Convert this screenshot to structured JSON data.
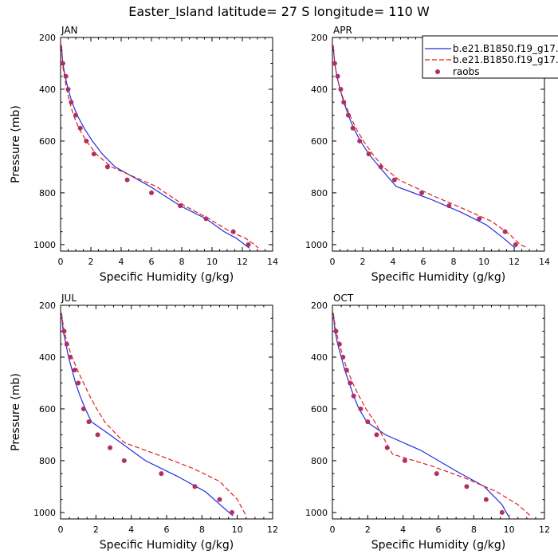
{
  "figure": {
    "title": "Easter_Island  latitude= 27 S longitude= 110 W"
  },
  "legend": {
    "placement": "top-right",
    "entries": [
      {
        "label": "b.e21.B1850.f19_g17.",
        "color": "#1f2fe0",
        "style": "solid"
      },
      {
        "label": "b.e21.B1850.f19_g17.",
        "color": "#e01f1f",
        "style": "dashed"
      },
      {
        "label": "raobs",
        "color": "#b03060",
        "style": "dots"
      }
    ]
  },
  "chart_data": [
    {
      "type": "line",
      "panel_label": "JAN",
      "xlabel": "Specific Humidity (g/kg)",
      "ylabel": "Pressure (mb)",
      "xlim": [
        0,
        14
      ],
      "ylim": [
        1025,
        200
      ],
      "xticks": [
        0,
        2,
        4,
        6,
        8,
        10,
        12,
        14
      ],
      "yticks": [
        200,
        400,
        600,
        800,
        1000
      ],
      "series": [
        {
          "color": "#1f2fe0",
          "dash": "solid",
          "x": [
            0.05,
            0.15,
            0.3,
            0.5,
            0.75,
            1.1,
            1.55,
            2.1,
            2.75,
            3.6,
            5.9,
            7.9,
            9.6,
            10.8,
            11.6,
            12.15,
            12.45
          ],
          "y": [
            230,
            300,
            350,
            400,
            450,
            500,
            550,
            600,
            650,
            700,
            775,
            850,
            900,
            950,
            975,
            1000,
            1013
          ]
        },
        {
          "color": "#e01f1f",
          "dash": "dashed",
          "x": [
            0.05,
            0.12,
            0.25,
            0.4,
            0.6,
            0.85,
            1.2,
            1.7,
            2.35,
            3.35,
            6.3,
            8.2,
            9.8,
            11.2,
            12.2,
            12.8,
            13.05
          ],
          "y": [
            230,
            300,
            350,
            400,
            450,
            500,
            550,
            600,
            650,
            700,
            775,
            850,
            900,
            950,
            975,
            1000,
            1013
          ]
        },
        {
          "color": "#b03060",
          "dash": "dots",
          "x": [
            0.15,
            0.35,
            0.5,
            0.7,
            1.0,
            1.3,
            1.7,
            2.2,
            3.1,
            4.4,
            6.0,
            7.9,
            9.6,
            11.4,
            12.4
          ],
          "y": [
            300,
            350,
            400,
            450,
            500,
            550,
            600,
            650,
            700,
            750,
            800,
            850,
            900,
            950,
            1000
          ]
        }
      ]
    },
    {
      "type": "line",
      "panel_label": "APR",
      "xlabel": "Specific Humidity (g/kg)",
      "ylabel": "",
      "xlim": [
        0,
        14
      ],
      "ylim": [
        1025,
        200
      ],
      "xticks": [
        0,
        2,
        4,
        6,
        8,
        10,
        12,
        14
      ],
      "yticks": [
        200,
        400,
        600,
        800,
        1000
      ],
      "series": [
        {
          "color": "#1f2fe0",
          "dash": "solid",
          "x": [
            0.05,
            0.15,
            0.3,
            0.5,
            0.75,
            1.05,
            1.4,
            1.85,
            2.4,
            3.1,
            4.2,
            6.5,
            8.5,
            10.2,
            11.3,
            11.8,
            12.05
          ],
          "y": [
            230,
            300,
            350,
            400,
            450,
            500,
            550,
            600,
            650,
            700,
            775,
            825,
            875,
            925,
            975,
            1000,
            1013
          ]
        },
        {
          "color": "#e01f1f",
          "dash": "dashed",
          "x": [
            0.05,
            0.15,
            0.3,
            0.5,
            0.8,
            1.15,
            1.55,
            2.05,
            2.65,
            3.35,
            4.4,
            6.6,
            8.6,
            10.5,
            11.7,
            12.4,
            12.9
          ],
          "y": [
            230,
            300,
            350,
            400,
            450,
            500,
            550,
            600,
            650,
            700,
            750,
            810,
            860,
            910,
            960,
            1000,
            1013
          ]
        },
        {
          "color": "#b03060",
          "dash": "dots",
          "x": [
            0.15,
            0.35,
            0.55,
            0.75,
            1.05,
            1.35,
            1.8,
            2.4,
            3.2,
            4.1,
            5.9,
            7.7,
            9.7,
            11.4,
            12.1
          ],
          "y": [
            300,
            350,
            400,
            450,
            500,
            550,
            600,
            650,
            700,
            750,
            800,
            850,
            900,
            950,
            1000
          ]
        }
      ]
    },
    {
      "type": "line",
      "panel_label": "JUL",
      "xlabel": "Specific Humidity (g/kg)",
      "ylabel": "Pressure (mb)",
      "xlim": [
        0,
        12
      ],
      "ylim": [
        1025,
        200
      ],
      "xticks": [
        0,
        2,
        4,
        6,
        8,
        10,
        12
      ],
      "yticks": [
        200,
        400,
        600,
        800,
        1000
      ],
      "series": [
        {
          "color": "#1f2fe0",
          "dash": "solid",
          "x": [
            0.05,
            0.15,
            0.3,
            0.45,
            0.65,
            0.85,
            1.1,
            1.4,
            1.75,
            3.0,
            4.8,
            6.6,
            8.2,
            9.2,
            9.75
          ],
          "y": [
            230,
            300,
            350,
            400,
            450,
            500,
            550,
            600,
            650,
            710,
            800,
            860,
            920,
            980,
            1013
          ]
        },
        {
          "color": "#e01f1f",
          "dash": "dashed",
          "x": [
            0.05,
            0.2,
            0.4,
            0.65,
            0.95,
            1.3,
            1.65,
            2.05,
            2.5,
            3.6,
            5.6,
            7.5,
            9.0,
            10.0,
            10.5
          ],
          "y": [
            230,
            300,
            350,
            400,
            450,
            500,
            550,
            600,
            650,
            730,
            780,
            830,
            880,
            950,
            1013
          ]
        },
        {
          "color": "#b03060",
          "dash": "dots",
          "x": [
            0.2,
            0.35,
            0.55,
            0.8,
            1.0,
            1.3,
            1.6,
            2.1,
            2.8,
            3.6,
            5.7,
            7.6,
            9.0,
            9.7
          ],
          "y": [
            300,
            350,
            400,
            450,
            500,
            600,
            650,
            700,
            750,
            800,
            850,
            900,
            950,
            1000
          ]
        }
      ]
    },
    {
      "type": "line",
      "panel_label": "OCT",
      "xlabel": "Specific Humidity (g/kg)",
      "ylabel": "",
      "xlim": [
        0,
        12
      ],
      "ylim": [
        1025,
        200
      ],
      "xticks": [
        0,
        2,
        4,
        6,
        8,
        10,
        12
      ],
      "yticks": [
        200,
        400,
        600,
        800,
        1000
      ],
      "series": [
        {
          "color": "#1f2fe0",
          "dash": "solid",
          "x": [
            0.05,
            0.15,
            0.3,
            0.5,
            0.7,
            0.95,
            1.2,
            1.5,
            1.95,
            3.0,
            5.0,
            7.0,
            8.6,
            9.6,
            9.95
          ],
          "y": [
            230,
            300,
            350,
            400,
            450,
            500,
            550,
            600,
            650,
            700,
            760,
            840,
            900,
            970,
            1013
          ]
        },
        {
          "color": "#e01f1f",
          "dash": "dashed",
          "x": [
            0.05,
            0.2,
            0.4,
            0.6,
            0.85,
            1.15,
            1.5,
            1.9,
            2.4,
            3.4,
            5.6,
            7.6,
            9.3,
            10.5,
            11.2
          ],
          "y": [
            230,
            300,
            350,
            400,
            450,
            500,
            550,
            600,
            650,
            775,
            820,
            870,
            920,
            970,
            1013
          ]
        },
        {
          "color": "#b03060",
          "dash": "dots",
          "x": [
            0.2,
            0.4,
            0.6,
            0.8,
            1.0,
            1.2,
            1.6,
            2.0,
            2.5,
            3.1,
            4.1,
            5.9,
            7.6,
            8.7,
            9.6
          ],
          "y": [
            300,
            350,
            400,
            450,
            500,
            550,
            600,
            650,
            700,
            750,
            800,
            850,
            900,
            950,
            1000
          ]
        }
      ]
    }
  ]
}
